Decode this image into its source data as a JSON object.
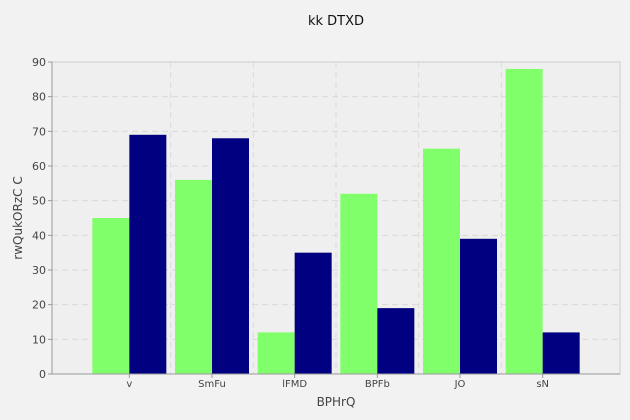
{
  "chart_data": {
    "type": "bar",
    "title": "kk DTXD",
    "xlabel": "BPHrQ",
    "ylabel": "rwQukORzC C",
    "categories": [
      "v",
      "SmFu",
      "lFMD",
      "BPFb",
      "JO",
      "sN"
    ],
    "series": [
      {
        "values": [
          45,
          56,
          12,
          52,
          65,
          88
        ]
      },
      {
        "values": [
          69,
          68,
          35,
          19,
          39,
          12
        ]
      }
    ],
    "ylim": [
      0,
      90
    ],
    "yticks": [
      0,
      10,
      20,
      30,
      40,
      50,
      60,
      70,
      80,
      90
    ],
    "grid": true,
    "colors": {
      "series": [
        "#80ff6a",
        "#000080"
      ],
      "plot_background": "#efefef",
      "page_background": "#f2f2f2",
      "grid": "#dadada",
      "axis": "#999999"
    }
  }
}
